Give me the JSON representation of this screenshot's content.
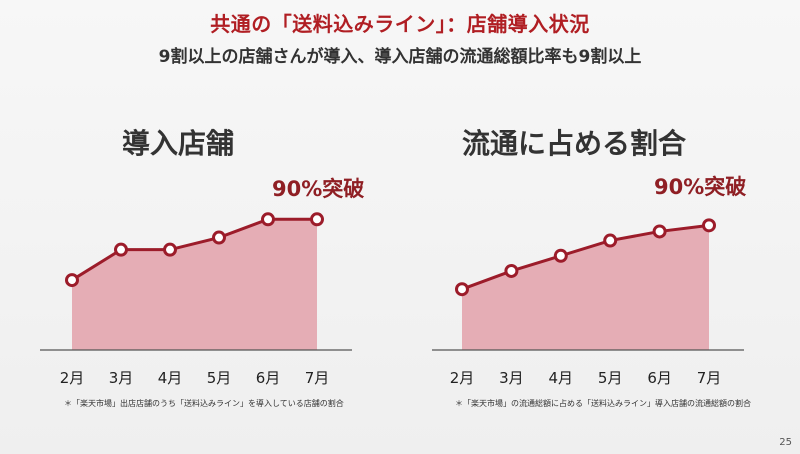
{
  "title": "共通の「送料込みライン」：店舗導入状況",
  "subtitle": "9割以上の店舗さんが導入、導入店舗の流通総額比率も9割以上",
  "page_number": "25",
  "colors": {
    "accent": "#b01e23",
    "line": "#9c1c2a",
    "fill": "#e3a5ae"
  },
  "chart_data": [
    {
      "type": "area",
      "title": "導入店舗",
      "categories": [
        "2月",
        "3月",
        "4月",
        "5月",
        "6月",
        "7月"
      ],
      "values": [
        0.73,
        0.83,
        0.83,
        0.87,
        0.93,
        0.93
      ],
      "annotation": "90%突破",
      "footnote": "＊「楽天市場」出店店舗のうち「送料込みライン」を導入している店舗の割合"
    },
    {
      "type": "area",
      "title": "流通に占める割合",
      "categories": [
        "2月",
        "3月",
        "4月",
        "5月",
        "6月",
        "7月"
      ],
      "values": [
        0.7,
        0.76,
        0.81,
        0.86,
        0.89,
        0.91
      ],
      "annotation": "90%突破",
      "footnote": "＊「楽天市場」の流通総額に占める「送料込みライン」導入店舗の流通総額の割合"
    }
  ]
}
